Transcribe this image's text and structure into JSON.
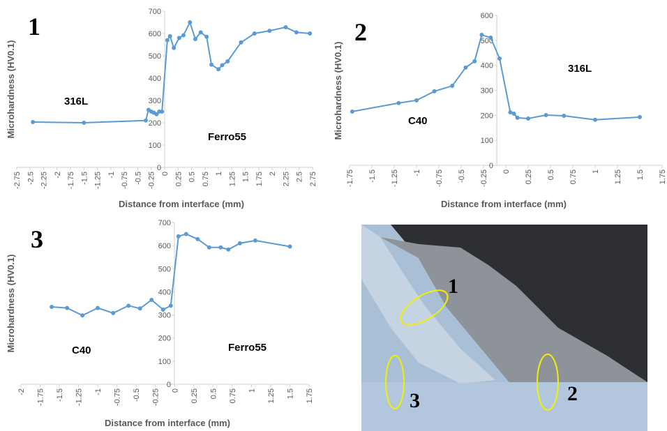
{
  "chart_data": [
    {
      "type": "line",
      "panel_label": "1",
      "xlabel": "Distance from interface (mm)",
      "ylabel": "Microhardness (HV0.1)",
      "annotations": [
        "316L",
        "Ferro55"
      ],
      "color": "#5b9bd5",
      "x": [
        -2.45,
        -1.5,
        -0.35,
        -0.3,
        -0.25,
        -0.2,
        -0.15,
        -0.1,
        -0.05,
        0.05,
        0.1,
        0.17,
        0.27,
        0.35,
        0.47,
        0.57,
        0.67,
        0.78,
        0.87,
        1,
        1.07,
        1.17,
        1.42,
        1.67,
        1.95,
        2.25,
        2.45,
        2.7
      ],
      "values": [
        203,
        200,
        210,
        258,
        250,
        245,
        238,
        250,
        250,
        570,
        588,
        535,
        580,
        592,
        650,
        575,
        605,
        585,
        460,
        440,
        458,
        475,
        560,
        600,
        612,
        628,
        605,
        600
      ],
      "xlim": [
        -2.75,
        2.75
      ],
      "ylim": [
        0,
        700
      ],
      "xticks": [
        -2.75,
        -2.5,
        -2.25,
        -2,
        -1.75,
        -1.5,
        -1.25,
        -1,
        -0.75,
        -0.5,
        -0.25,
        0,
        0.25,
        0.5,
        0.75,
        1,
        1.25,
        1.5,
        1.75,
        2,
        2.25,
        2.5,
        2.75
      ],
      "yticks": [
        0,
        100,
        200,
        300,
        400,
        500,
        600,
        700
      ]
    },
    {
      "type": "line",
      "panel_label": "2",
      "xlabel": "Distance from interface (mm)",
      "ylabel": "Microhardness (HV0.1)",
      "annotations": [
        "C40",
        "316L"
      ],
      "color": "#5b9bd5",
      "x": [
        -1.72,
        -1.2,
        -1,
        -0.8,
        -0.6,
        -0.45,
        -0.35,
        -0.27,
        -0.17,
        -0.07,
        0.05,
        0.09,
        0.13,
        0.25,
        0.45,
        0.65,
        1,
        1.5
      ],
      "values": [
        215,
        249,
        260,
        296,
        318,
        391,
        416,
        522,
        511,
        427,
        212,
        207,
        190,
        187,
        201,
        198,
        182,
        193
      ],
      "xlim": [
        -1.75,
        1.75
      ],
      "ylim": [
        0,
        600
      ],
      "xticks": [
        -1.75,
        -1.5,
        -1.25,
        -1,
        -0.75,
        -0.5,
        -0.25,
        0,
        0.25,
        0.5,
        0.75,
        1,
        1.25,
        1.5,
        1.75
      ],
      "yticks": [
        0,
        100,
        200,
        300,
        400,
        500,
        600
      ]
    },
    {
      "type": "line",
      "panel_label": "3",
      "xlabel": "Distance from interface (mm)",
      "ylabel": "Microhardness (HV0.1)",
      "annotations": [
        "C40",
        "Ferro55"
      ],
      "color": "#5b9bd5",
      "x": [
        -1.6,
        -1.4,
        -1.2,
        -1,
        -0.8,
        -0.6,
        -0.45,
        -0.3,
        -0.15,
        -0.05,
        0.05,
        0.15,
        0.3,
        0.45,
        0.6,
        0.7,
        0.85,
        1.05,
        1.5
      ],
      "values": [
        335,
        330,
        298,
        330,
        308,
        340,
        328,
        365,
        323,
        340,
        640,
        650,
        628,
        592,
        592,
        583,
        610,
        622,
        596
      ],
      "xlim": [
        -2,
        1.75
      ],
      "ylim": [
        0,
        700
      ],
      "xticks": [
        -2,
        -1.75,
        -1.5,
        -1.25,
        -1,
        -0.75,
        -0.5,
        -0.25,
        0,
        0.25,
        0.5,
        0.75,
        1,
        1.25,
        1.5,
        1.75
      ],
      "yticks": [
        0,
        100,
        200,
        300,
        400,
        500,
        600,
        700
      ]
    }
  ],
  "micrograph": {
    "labels": [
      "1",
      "2",
      "3"
    ]
  }
}
